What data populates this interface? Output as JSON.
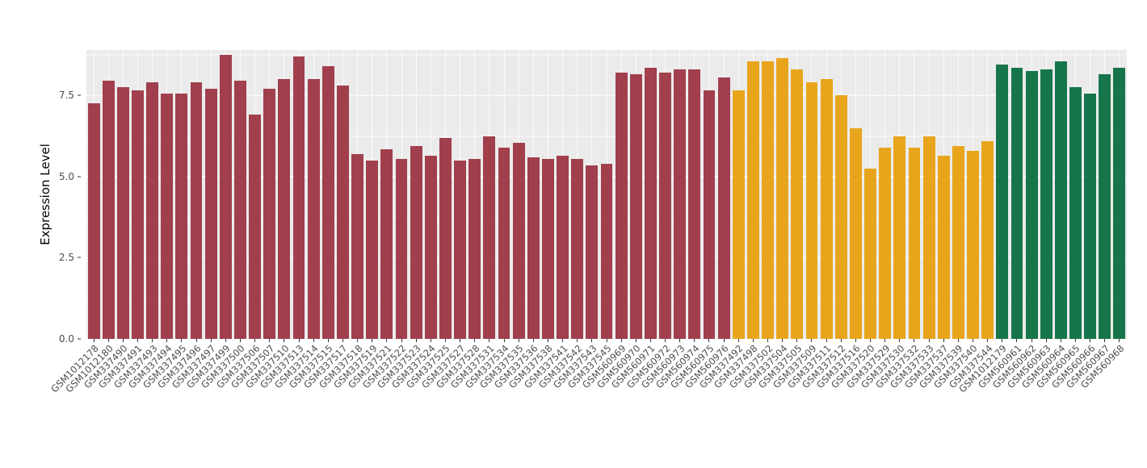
{
  "chart_data": {
    "type": "bar",
    "title": "",
    "xlabel": "",
    "ylabel": "Expression Level",
    "ylim": [
      0,
      8.9
    ],
    "yticks": [
      0.0,
      2.5,
      5.0,
      7.5
    ],
    "ytick_labels": [
      "0.0",
      "2.5",
      "5.0",
      "7.5"
    ],
    "yticks_minor": [
      1.25,
      3.75,
      6.25,
      8.75
    ],
    "grid": "major-white-on-gray-panel",
    "legend": "none",
    "panel_color": "#EBEBEB",
    "groups": [
      {
        "color": "#A13F4D",
        "categories": [
          "GSM1012178",
          "GSM1012180",
          "GSM337490",
          "GSM337491",
          "GSM337493",
          "GSM337494",
          "GSM337495",
          "GSM337496",
          "GSM337497",
          "GSM337499",
          "GSM337500",
          "GSM337506",
          "GSM337507",
          "GSM337510",
          "GSM337513",
          "GSM337514",
          "GSM337515",
          "GSM337517",
          "GSM337518",
          "GSM337519",
          "GSM337521",
          "GSM337522",
          "GSM337523",
          "GSM337524",
          "GSM337525",
          "GSM337527",
          "GSM337528",
          "GSM337531",
          "GSM337534",
          "GSM337535",
          "GSM337536",
          "GSM337538",
          "GSM337541",
          "GSM337542",
          "GSM337543",
          "GSM337545",
          "GSM560969",
          "GSM560970",
          "GSM560971",
          "GSM560972",
          "GSM560973",
          "GSM560974",
          "GSM560975",
          "GSM560976"
        ],
        "values": [
          7.25,
          7.95,
          7.75,
          7.65,
          7.9,
          7.55,
          7.55,
          7.9,
          7.7,
          8.75,
          7.95,
          6.9,
          7.7,
          8.0,
          8.7,
          8.0,
          8.4,
          7.8,
          5.7,
          5.5,
          5.85,
          5.55,
          5.95,
          5.65,
          6.2,
          5.5,
          5.55,
          6.25,
          5.9,
          6.05,
          5.6,
          5.55,
          5.65,
          5.55,
          5.35,
          5.4,
          8.2,
          8.15,
          8.35,
          8.2,
          8.3,
          8.3,
          7.65,
          8.05
        ]
      },
      {
        "color": "#E8A51C",
        "categories": [
          "GSM337492",
          "GSM337498",
          "GSM337502",
          "GSM337504",
          "GSM337505",
          "GSM337509",
          "GSM337511",
          "GSM337512",
          "GSM337516",
          "GSM337520",
          "GSM337529",
          "GSM337530",
          "GSM337532",
          "GSM337533",
          "GSM337537",
          "GSM337539",
          "GSM337540",
          "GSM337544"
        ],
        "values": [
          7.65,
          8.55,
          8.55,
          8.65,
          8.3,
          7.9,
          8.0,
          7.5,
          6.5,
          5.25,
          5.9,
          6.25,
          5.9,
          6.25,
          5.65,
          5.95,
          5.8,
          6.1
        ]
      },
      {
        "color": "#17754B",
        "categories": [
          "GSM1012179",
          "GSM560961",
          "GSM560962",
          "GSM560963",
          "GSM560964",
          "GSM560965",
          "GSM560966",
          "GSM560967",
          "GSM560968"
        ],
        "values": [
          8.45,
          8.35,
          8.25,
          8.3,
          8.55,
          7.75,
          7.55,
          8.15,
          8.35
        ]
      }
    ]
  }
}
